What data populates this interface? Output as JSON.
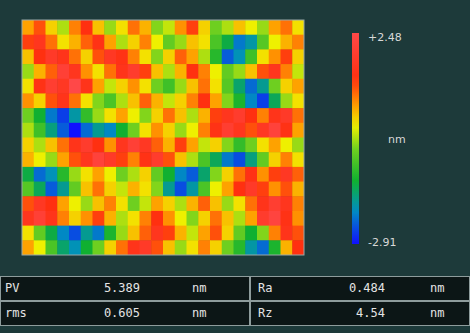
{
  "chart_data": {
    "type": "heatmap",
    "tick_labels": false,
    "cells": [
      [
        0.6,
        1.1,
        0.3,
        -0.2,
        0.8,
        1.3,
        0.4,
        -0.3,
        0.2,
        0.9,
        0.5,
        -0.4,
        -0.1,
        0.7,
        1.2,
        0.3,
        -0.5,
        -0.2,
        0.4,
        0.1,
        -0.3,
        0.6,
        0.9,
        0.2
      ],
      [
        1.2,
        1.6,
        0.9,
        0.2,
        0.5,
        1.0,
        1.4,
        0.6,
        -0.2,
        0.3,
        0.8,
        0.1,
        -0.6,
        -0.3,
        0.4,
        0.2,
        -0.8,
        -1.4,
        -2.2,
        -1.9,
        -0.7,
        0.1,
        0.5,
        0.8
      ],
      [
        0.4,
        1.3,
        1.8,
        1.5,
        0.9,
        0.3,
        1.1,
        1.7,
        1.4,
        0.8,
        0.2,
        -0.4,
        0.3,
        1.0,
        0.6,
        -0.2,
        -1.1,
        -2.4,
        -2.0,
        -0.9,
        0.2,
        0.7,
        1.2,
        0.3
      ],
      [
        -0.3,
        0.5,
        1.0,
        2.1,
        1.6,
        0.7,
        0.2,
        0.9,
        1.5,
        1.9,
        1.2,
        0.4,
        -0.2,
        0.5,
        1.3,
        0.8,
        0.1,
        -0.6,
        -0.3,
        0.4,
        1.1,
        1.6,
        0.8,
        -0.1
      ],
      [
        0.2,
        1.4,
        2.0,
        1.7,
        2.48,
        1.5,
        0.6,
        -0.1,
        0.3,
        0.7,
        0.2,
        -0.5,
        -0.9,
        -0.3,
        0.4,
        0.9,
        0.2,
        -0.7,
        -1.6,
        -2.3,
        -1.8,
        -0.5,
        0.3,
        0.6
      ],
      [
        0.7,
        0.3,
        1.1,
        1.5,
        0.9,
        0.2,
        -0.4,
        -0.8,
        -0.2,
        0.4,
        1.0,
        0.5,
        -0.1,
        0.3,
        0.8,
        1.3,
        0.6,
        -0.4,
        -1.2,
        -2.1,
        -2.6,
        -1.5,
        -0.3,
        0.2
      ],
      [
        -0.5,
        -1.3,
        -2.2,
        -2.6,
        -1.9,
        -1.0,
        -0.3,
        0.2,
        0.6,
        0.1,
        -0.4,
        0.3,
        0.9,
        0.4,
        -0.2,
        0.5,
        1.2,
        1.6,
        1.9,
        1.3,
        0.8,
        1.5,
        1.8,
        0.9
      ],
      [
        -0.2,
        -0.9,
        -1.7,
        -2.4,
        -2.91,
        -2.3,
        -1.8,
        -2.1,
        -1.3,
        -0.5,
        0.2,
        0.7,
        0.3,
        -0.3,
        0.1,
        0.8,
        1.4,
        2.0,
        1.6,
        1.1,
        1.7,
        2.2,
        1.4,
        0.6
      ],
      [
        0.3,
        -0.2,
        0.4,
        0.9,
        1.5,
        1.9,
        1.3,
        0.7,
        1.6,
        2.1,
        1.7,
        1.0,
        0.5,
        1.2,
        0.6,
        -0.1,
        0.3,
        -0.4,
        -1.0,
        -0.5,
        0.2,
        0.6,
        0.1,
        -0.3
      ],
      [
        0.5,
        0.1,
        -0.3,
        0.6,
        1.1,
        1.6,
        2.2,
        1.8,
        1.2,
        0.8,
        1.4,
        1.9,
        1.1,
        0.4,
        -0.2,
        -0.8,
        -1.5,
        -2.2,
        -2.5,
        -1.7,
        -0.6,
        0.3,
        0.8,
        0.2
      ],
      [
        -1.4,
        -2.3,
        -2.0,
        -1.1,
        -0.3,
        0.2,
        0.6,
        0.1,
        -0.5,
        -0.2,
        0.3,
        -0.6,
        -1.3,
        -2.1,
        -2.4,
        -1.6,
        -0.4,
        0.3,
        0.9,
        1.4,
        0.7,
        1.2,
        1.7,
        1.0
      ],
      [
        -0.7,
        -1.5,
        -2.4,
        -1.8,
        -0.6,
        0.4,
        0.9,
        0.3,
        -0.1,
        0.5,
        0.2,
        -0.4,
        -1.8,
        -2.5,
        -1.9,
        -0.8,
        0.1,
        0.6,
        1.3,
        1.8,
        1.2,
        0.7,
        1.1,
        0.5
      ],
      [
        1.1,
        1.7,
        1.3,
        0.6,
        0.1,
        -0.3,
        0.4,
        0.8,
        0.2,
        -0.5,
        -0.1,
        0.6,
        0.3,
        -0.2,
        0.5,
        1.0,
        0.4,
        -0.3,
        0.2,
        0.9,
        1.5,
        2.0,
        1.6,
        0.8
      ],
      [
        1.6,
        2.1,
        1.5,
        0.8,
        0.3,
        0.7,
        1.2,
        0.5,
        -0.2,
        0.2,
        0.8,
        1.3,
        0.7,
        0.1,
        -0.4,
        0.3,
        0.9,
        0.4,
        -0.2,
        0.6,
        1.9,
        2.3,
        1.4,
        0.7
      ],
      [
        0.2,
        -0.6,
        -1.4,
        -2.1,
        -2.5,
        -1.8,
        -2.2,
        -1.2,
        -0.3,
        0.4,
        1.0,
        1.6,
        1.2,
        0.5,
        -0.1,
        0.6,
        1.1,
        0.3,
        -0.6,
        -1.3,
        -0.4,
        0.8,
        1.5,
        1.1
      ],
      [
        0.6,
        0.1,
        -0.8,
        -1.6,
        -2.0,
        -1.3,
        -0.5,
        0.3,
        0.9,
        1.5,
        1.8,
        1.1,
        0.4,
        -0.3,
        0.2,
        0.8,
        0.3,
        -0.5,
        -1.1,
        -1.9,
        -2.3,
        -1.2,
        0.5,
        1.3
      ]
    ],
    "colorbar": {
      "range": [
        -2.91,
        2.48
      ],
      "ticks": [
        {
          "value": 2.48,
          "label": "+2.48"
        },
        -2.91
      ],
      "label": "nm"
    }
  },
  "table": {
    "rows": [
      [
        "PV",
        5.389,
        "nm",
        "Ra",
        0.484,
        "nm"
      ],
      [
        "rms",
        0.605,
        "nm",
        "Rz",
        4.54,
        "nm"
      ]
    ]
  }
}
